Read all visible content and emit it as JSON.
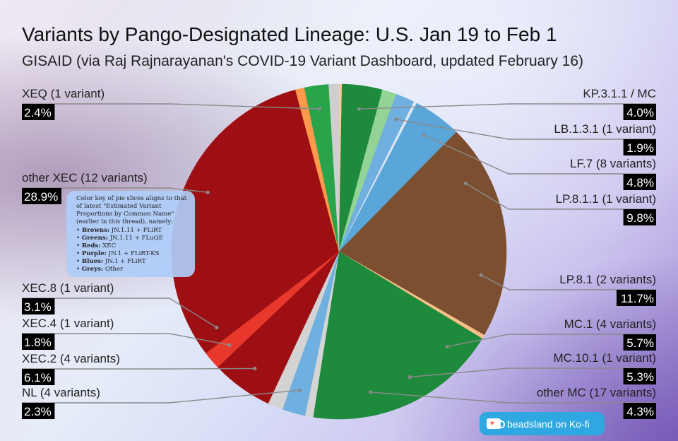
{
  "title": "Variants by Pango-Designated Lineage: U.S. Jan 19 to Feb 1",
  "subtitle": "GISAID (via Raj Rajnarayanan's COVID-19 Variant Dashboard, updated February 16)",
  "note": {
    "intro": "Color key of pie slices aligns to that of latest \"Estimated Variant Proportions by Common Name\" (earlier in this thread), namely:",
    "items": [
      {
        "label": "Browns:",
        "text": "JN.1.11 + FLiRT"
      },
      {
        "label": "Greens:",
        "text": "JN.1.11 + FLuQE"
      },
      {
        "label": "Reds:",
        "text": "XEC"
      },
      {
        "label": "Purple:",
        "text": "JN.1 + FLiRT-KS"
      },
      {
        "label": "Blues:",
        "text": "JN.1 + FLiRT"
      },
      {
        "label": "Greys:",
        "text": "Other"
      }
    ]
  },
  "kofi": {
    "label": "beadsland on Ko-fi",
    "icon": "ko-fi-cup-icon"
  },
  "chart_data": {
    "type": "pie",
    "start_angle_deg": 0,
    "direction": "clockwise",
    "slices": [
      {
        "value": 0.3,
        "color": "#f9cb9c"
      },
      {
        "value": 4.0,
        "color": "#1e8a3c"
      },
      {
        "value": 1.4,
        "color": "#93d396"
      },
      {
        "value": 1.9,
        "color": "#6fb0e0"
      },
      {
        "value": 0.3,
        "color": "#dde6f4"
      },
      {
        "value": 4.8,
        "color": "#5aa6d8"
      },
      {
        "value": 9.8,
        "color": "#7b4f2f"
      },
      {
        "value": 11.7,
        "color": "#7b4f2f"
      },
      {
        "value": 0.4,
        "color": "#f6c089"
      },
      {
        "value": 5.7,
        "color": "#1e8a3c"
      },
      {
        "value": 5.3,
        "color": "#1e8a3c"
      },
      {
        "value": 4.3,
        "color": "#1e8a3c"
      },
      {
        "value": 4.0,
        "color": "#1e8a3c"
      },
      {
        "value": 0.8,
        "color": "#d5d5d5"
      },
      {
        "value": 2.3,
        "color": "#6fb0e0"
      },
      {
        "value": 1.5,
        "color": "#d3d3d3"
      },
      {
        "value": 6.1,
        "color": "#9e0f14"
      },
      {
        "value": 1.8,
        "color": "#e8382b"
      },
      {
        "value": 3.1,
        "color": "#9e0f14"
      },
      {
        "value": 28.9,
        "color": "#9e0f14"
      },
      {
        "value": 0.9,
        "color": "#ff9a4d"
      },
      {
        "value": 2.4,
        "color": "#2aa44a"
      },
      {
        "value": 1.0,
        "color": "#cfcfcf"
      }
    ],
    "labels": [
      {
        "name": "KP.3.1.1 / MC",
        "value": "4.0%",
        "slice": 1,
        "side": "right"
      },
      {
        "name": "LB.1.3.1 (1 variant)",
        "value": "1.9%",
        "slice": 3,
        "side": "right"
      },
      {
        "name": "LF.7 (8 variants)",
        "value": "4.8%",
        "slice": 5,
        "side": "right"
      },
      {
        "name": "LP.8.1.1 (1 variant)",
        "value": "9.8%",
        "slice": 6,
        "side": "right"
      },
      {
        "name": "LP.8.1 (2 variants)",
        "value": "11.7%",
        "slice": 7,
        "side": "right"
      },
      {
        "name": "MC.1 (4 variants)",
        "value": "5.7%",
        "slice": 9,
        "side": "right"
      },
      {
        "name": "MC.10.1 (1 variant)",
        "value": "5.3%",
        "slice": 10,
        "side": "right"
      },
      {
        "name": "other MC (17 variants)",
        "value": "4.3%",
        "slice": 11,
        "side": "right"
      },
      {
        "name": "XEQ (1 variant)",
        "value": "2.4%",
        "slice": 21,
        "side": "left"
      },
      {
        "name": "other XEC (12 variants)",
        "value": "28.9%",
        "slice": 19,
        "side": "left"
      },
      {
        "name": "XEC.8 (1 variant)",
        "value": "3.1%",
        "slice": 18,
        "side": "left"
      },
      {
        "name": "XEC.4 (1 variant)",
        "value": "1.8%",
        "slice": 17,
        "side": "left"
      },
      {
        "name": "XEC.2 (4 variants)",
        "value": "6.1%",
        "slice": 16,
        "side": "left"
      },
      {
        "name": "NL (4 variants)",
        "value": "2.3%",
        "slice": 14,
        "side": "left"
      }
    ]
  }
}
